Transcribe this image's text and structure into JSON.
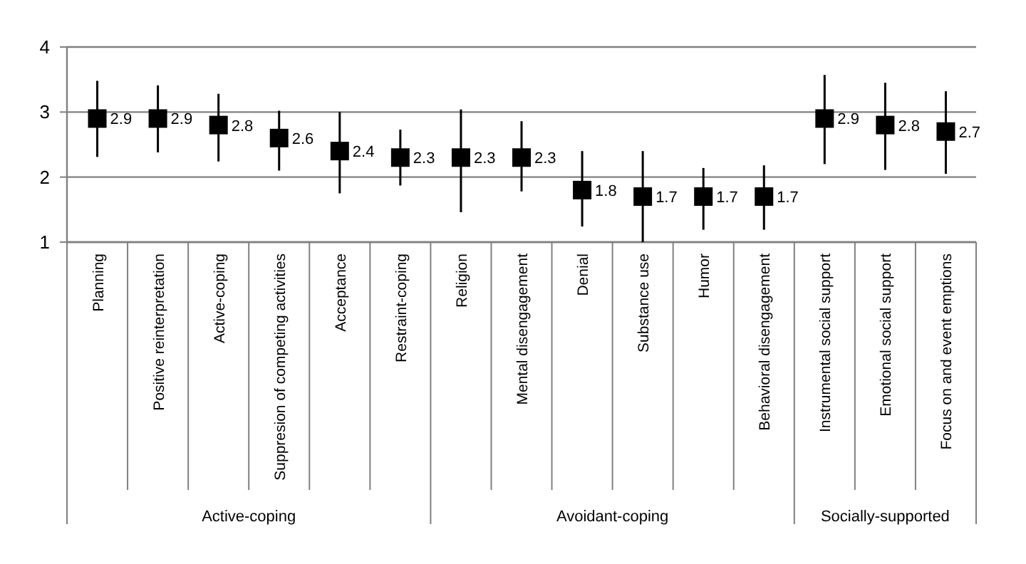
{
  "chart_data": {
    "type": "scatter",
    "categories": [
      "Planning",
      "Positive reinterpretation",
      "Active-coping",
      "Suppresion of competing activities",
      "Acceptance",
      "Restraint-coping",
      "Religion",
      "Mental disengagement",
      "Denial",
      "Substance use",
      "Humor",
      "Behavioral disengagement",
      "Instrumental social support",
      "Emotional social support",
      "Focus on and event emptions"
    ],
    "series": [
      {
        "color": "#000000",
        "values": [
          2.9,
          2.9,
          2.8,
          2.6,
          2.4,
          2.3,
          2.3,
          2.3,
          1.8,
          1.7,
          1.7,
          1.7,
          2.9,
          2.8,
          2.7
        ],
        "errors": [
          [
            2.31,
            3.48
          ],
          [
            2.38,
            3.41
          ],
          [
            2.24,
            3.28
          ],
          [
            2.1,
            3.02
          ],
          [
            1.75,
            3.0
          ],
          [
            1.87,
            2.73
          ],
          [
            1.46,
            3.04
          ],
          [
            1.78,
            2.86
          ],
          [
            1.24,
            2.4
          ],
          [
            1.0,
            2.4
          ],
          [
            1.19,
            2.14
          ],
          [
            1.19,
            2.18
          ],
          [
            2.2,
            3.57
          ],
          [
            2.11,
            3.45
          ],
          [
            2.05,
            3.32
          ]
        ]
      }
    ],
    "ylim": [
      1,
      4
    ],
    "yticks": [
      1,
      2,
      3,
      4
    ],
    "grid": "y",
    "marker": "square",
    "data_labels": true,
    "annotations": [
      "Active-coping",
      "Avoidant-coping",
      "Socially-supported"
    ]
  }
}
